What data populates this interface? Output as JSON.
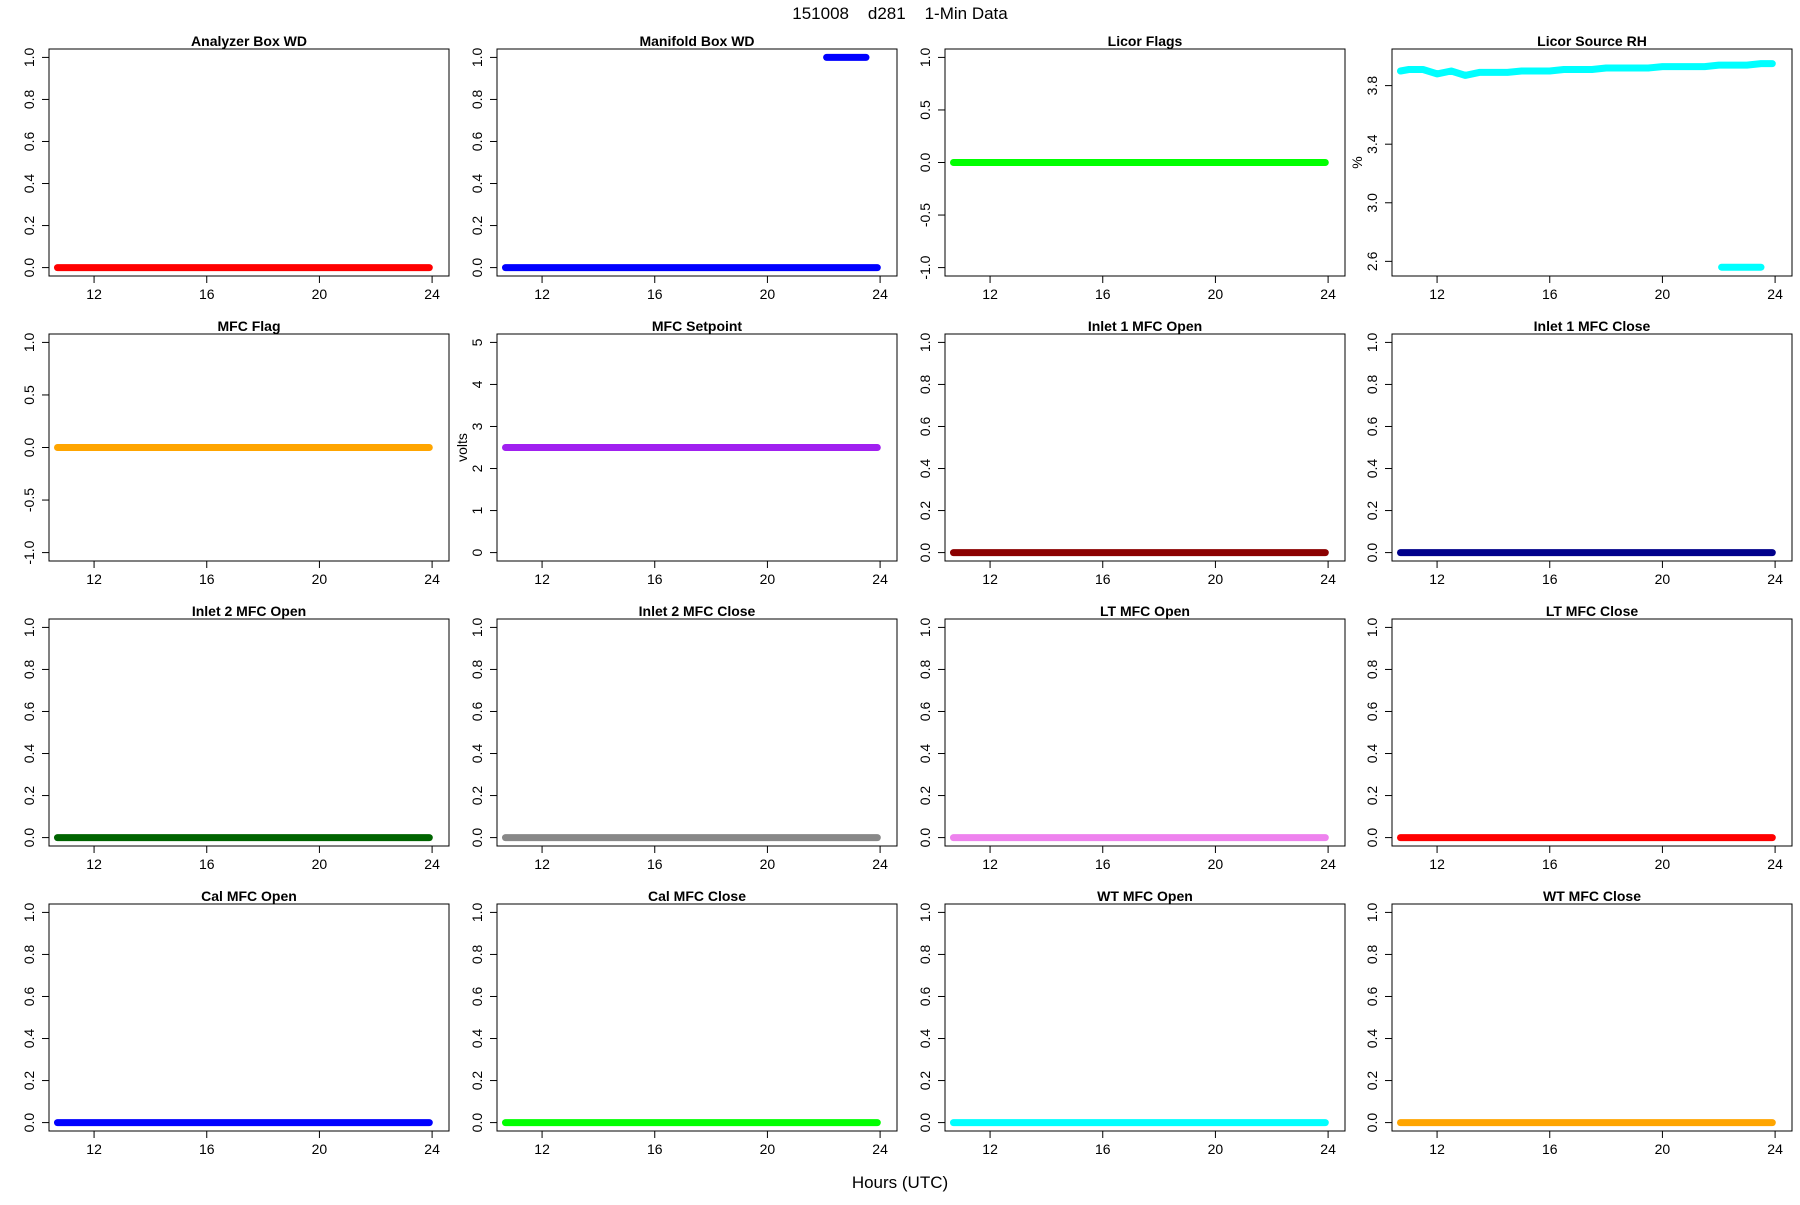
{
  "figure": {
    "title": "151008    d281    1-Min Data",
    "xlabel": "Hours (UTC)"
  },
  "chart_data": [
    {
      "type": "scatter",
      "title": "Analyzer Box WD",
      "ylabel": "",
      "xlim": [
        10.4,
        24.6
      ],
      "ylim": [
        -0.04,
        1.04
      ],
      "xticks": [
        12,
        16,
        20,
        24
      ],
      "yticks": [
        0,
        0.2,
        0.4,
        0.6,
        0.8,
        1
      ],
      "ytick_labels": [
        "0.0",
        "0.2",
        "0.4",
        "0.6",
        "0.8",
        "1.0"
      ],
      "color": "#ff0000",
      "segments": [
        {
          "x": [
            10.7,
            23.9
          ],
          "y": [
            0,
            0
          ]
        }
      ]
    },
    {
      "type": "scatter",
      "title": "Manifold Box WD",
      "ylabel": "",
      "xlim": [
        10.4,
        24.6
      ],
      "ylim": [
        -0.04,
        1.04
      ],
      "xticks": [
        12,
        16,
        20,
        24
      ],
      "yticks": [
        0,
        0.2,
        0.4,
        0.6,
        0.8,
        1
      ],
      "ytick_labels": [
        "0.0",
        "0.2",
        "0.4",
        "0.6",
        "0.8",
        "1.0"
      ],
      "color": "#0000ff",
      "segments": [
        {
          "x": [
            10.7,
            23.9
          ],
          "y": [
            0,
            0
          ]
        },
        {
          "x": [
            22.1,
            23.5
          ],
          "y": [
            1,
            1
          ]
        }
      ]
    },
    {
      "type": "scatter",
      "title": "Licor Flags",
      "ylabel": "",
      "xlim": [
        10.4,
        24.6
      ],
      "ylim": [
        -1.08,
        1.08
      ],
      "xticks": [
        12,
        16,
        20,
        24
      ],
      "yticks": [
        -1,
        -0.5,
        0,
        0.5,
        1
      ],
      "ytick_labels": [
        "-1.0",
        "-0.5",
        "0.0",
        "0.5",
        "1.0"
      ],
      "color": "#00ff00",
      "segments": [
        {
          "x": [
            10.7,
            23.9
          ],
          "y": [
            0,
            0
          ]
        }
      ]
    },
    {
      "type": "scatter",
      "title": "Licor Source RH",
      "ylabel": "%",
      "xlim": [
        10.4,
        24.6
      ],
      "ylim": [
        2.5,
        4.05
      ],
      "xticks": [
        12,
        16,
        20,
        24
      ],
      "yticks": [
        2.6,
        3,
        3.4,
        3.8
      ],
      "ytick_labels": [
        "2.6",
        "3.0",
        "3.4",
        "3.8"
      ],
      "color": "#00ffff",
      "segments": [
        {
          "x": [
            10.7,
            11,
            11.5,
            12,
            12.5,
            13,
            13.5,
            14,
            14.5,
            15,
            15.5,
            16,
            16.5,
            17,
            17.5,
            18,
            18.5,
            19,
            19.5,
            20,
            20.5,
            21,
            21.5,
            22,
            22.5,
            23,
            23.5,
            23.9
          ],
          "y": [
            3.9,
            3.91,
            3.91,
            3.88,
            3.9,
            3.87,
            3.89,
            3.89,
            3.89,
            3.9,
            3.9,
            3.9,
            3.91,
            3.91,
            3.91,
            3.92,
            3.92,
            3.92,
            3.92,
            3.93,
            3.93,
            3.93,
            3.93,
            3.94,
            3.94,
            3.94,
            3.95,
            3.95
          ]
        },
        {
          "x": [
            22.1,
            23.5
          ],
          "y": [
            2.56,
            2.56
          ]
        }
      ]
    },
    {
      "type": "scatter",
      "title": "MFC Flag",
      "ylabel": "",
      "xlim": [
        10.4,
        24.6
      ],
      "ylim": [
        -1.08,
        1.08
      ],
      "xticks": [
        12,
        16,
        20,
        24
      ],
      "yticks": [
        -1,
        -0.5,
        0,
        0.5,
        1
      ],
      "ytick_labels": [
        "-1.0",
        "-0.5",
        "0.0",
        "0.5",
        "1.0"
      ],
      "color": "#ffa500",
      "segments": [
        {
          "x": [
            10.7,
            23.9
          ],
          "y": [
            0,
            0
          ]
        }
      ]
    },
    {
      "type": "scatter",
      "title": "MFC Setpoint",
      "ylabel": "volts",
      "xlim": [
        10.4,
        24.6
      ],
      "ylim": [
        -0.2,
        5.2
      ],
      "xticks": [
        12,
        16,
        20,
        24
      ],
      "yticks": [
        0,
        1,
        2,
        3,
        4,
        5
      ],
      "ytick_labels": [
        "0",
        "1",
        "2",
        "3",
        "4",
        "5"
      ],
      "color": "#a020f0",
      "segments": [
        {
          "x": [
            10.7,
            23.9
          ],
          "y": [
            2.5,
            2.5
          ]
        }
      ]
    },
    {
      "type": "scatter",
      "title": "Inlet 1 MFC Open",
      "ylabel": "",
      "xlim": [
        10.4,
        24.6
      ],
      "ylim": [
        -0.04,
        1.04
      ],
      "xticks": [
        12,
        16,
        20,
        24
      ],
      "yticks": [
        0,
        0.2,
        0.4,
        0.6,
        0.8,
        1
      ],
      "ytick_labels": [
        "0.0",
        "0.2",
        "0.4",
        "0.6",
        "0.8",
        "1.0"
      ],
      "color": "#8b0000",
      "segments": [
        {
          "x": [
            10.7,
            23.9
          ],
          "y": [
            0,
            0
          ]
        }
      ]
    },
    {
      "type": "scatter",
      "title": "Inlet 1 MFC Close",
      "ylabel": "",
      "xlim": [
        10.4,
        24.6
      ],
      "ylim": [
        -0.04,
        1.04
      ],
      "xticks": [
        12,
        16,
        20,
        24
      ],
      "yticks": [
        0,
        0.2,
        0.4,
        0.6,
        0.8,
        1
      ],
      "ytick_labels": [
        "0.0",
        "0.2",
        "0.4",
        "0.6",
        "0.8",
        "1.0"
      ],
      "color": "#00008b",
      "segments": [
        {
          "x": [
            10.7,
            23.9
          ],
          "y": [
            0,
            0
          ]
        }
      ]
    },
    {
      "type": "scatter",
      "title": "Inlet 2 MFC Open",
      "ylabel": "",
      "xlim": [
        10.4,
        24.6
      ],
      "ylim": [
        -0.04,
        1.04
      ],
      "xticks": [
        12,
        16,
        20,
        24
      ],
      "yticks": [
        0,
        0.2,
        0.4,
        0.6,
        0.8,
        1
      ],
      "ytick_labels": [
        "0.0",
        "0.2",
        "0.4",
        "0.6",
        "0.8",
        "1.0"
      ],
      "color": "#006400",
      "segments": [
        {
          "x": [
            10.7,
            23.9
          ],
          "y": [
            0,
            0
          ]
        }
      ]
    },
    {
      "type": "scatter",
      "title": "Inlet 2 MFC Close",
      "ylabel": "",
      "xlim": [
        10.4,
        24.6
      ],
      "ylim": [
        -0.04,
        1.04
      ],
      "xticks": [
        12,
        16,
        20,
        24
      ],
      "yticks": [
        0,
        0.2,
        0.4,
        0.6,
        0.8,
        1
      ],
      "ytick_labels": [
        "0.0",
        "0.2",
        "0.4",
        "0.6",
        "0.8",
        "1.0"
      ],
      "color": "#888888",
      "segments": [
        {
          "x": [
            10.7,
            23.9
          ],
          "y": [
            0,
            0
          ]
        }
      ]
    },
    {
      "type": "scatter",
      "title": "LT MFC Open",
      "ylabel": "",
      "xlim": [
        10.4,
        24.6
      ],
      "ylim": [
        -0.04,
        1.04
      ],
      "xticks": [
        12,
        16,
        20,
        24
      ],
      "yticks": [
        0,
        0.2,
        0.4,
        0.6,
        0.8,
        1
      ],
      "ytick_labels": [
        "0.0",
        "0.2",
        "0.4",
        "0.6",
        "0.8",
        "1.0"
      ],
      "color": "#ee82ee",
      "segments": [
        {
          "x": [
            10.7,
            23.9
          ],
          "y": [
            0,
            0
          ]
        }
      ]
    },
    {
      "type": "scatter",
      "title": "LT MFC Close",
      "ylabel": "",
      "xlim": [
        10.4,
        24.6
      ],
      "ylim": [
        -0.04,
        1.04
      ],
      "xticks": [
        12,
        16,
        20,
        24
      ],
      "yticks": [
        0,
        0.2,
        0.4,
        0.6,
        0.8,
        1
      ],
      "ytick_labels": [
        "0.0",
        "0.2",
        "0.4",
        "0.6",
        "0.8",
        "1.0"
      ],
      "color": "#ff0000",
      "segments": [
        {
          "x": [
            10.7,
            23.9
          ],
          "y": [
            0,
            0
          ]
        }
      ]
    },
    {
      "type": "scatter",
      "title": "Cal MFC Open",
      "ylabel": "",
      "xlim": [
        10.4,
        24.6
      ],
      "ylim": [
        -0.04,
        1.04
      ],
      "xticks": [
        12,
        16,
        20,
        24
      ],
      "yticks": [
        0,
        0.2,
        0.4,
        0.6,
        0.8,
        1
      ],
      "ytick_labels": [
        "0.0",
        "0.2",
        "0.4",
        "0.6",
        "0.8",
        "1.0"
      ],
      "color": "#0000ff",
      "segments": [
        {
          "x": [
            10.7,
            23.9
          ],
          "y": [
            0,
            0
          ]
        }
      ]
    },
    {
      "type": "scatter",
      "title": "Cal MFC Close",
      "ylabel": "",
      "xlim": [
        10.4,
        24.6
      ],
      "ylim": [
        -0.04,
        1.04
      ],
      "xticks": [
        12,
        16,
        20,
        24
      ],
      "yticks": [
        0,
        0.2,
        0.4,
        0.6,
        0.8,
        1
      ],
      "ytick_labels": [
        "0.0",
        "0.2",
        "0.4",
        "0.6",
        "0.8",
        "1.0"
      ],
      "color": "#00ff00",
      "segments": [
        {
          "x": [
            10.7,
            23.9
          ],
          "y": [
            0,
            0
          ]
        }
      ]
    },
    {
      "type": "scatter",
      "title": "WT MFC Open",
      "ylabel": "",
      "xlim": [
        10.4,
        24.6
      ],
      "ylim": [
        -0.04,
        1.04
      ],
      "xticks": [
        12,
        16,
        20,
        24
      ],
      "yticks": [
        0,
        0.2,
        0.4,
        0.6,
        0.8,
        1
      ],
      "ytick_labels": [
        "0.0",
        "0.2",
        "0.4",
        "0.6",
        "0.8",
        "1.0"
      ],
      "color": "#00ffff",
      "segments": [
        {
          "x": [
            10.7,
            23.9
          ],
          "y": [
            0,
            0
          ]
        }
      ]
    },
    {
      "type": "scatter",
      "title": "WT MFC Close",
      "ylabel": "",
      "xlim": [
        10.4,
        24.6
      ],
      "ylim": [
        -0.04,
        1.04
      ],
      "xticks": [
        12,
        16,
        20,
        24
      ],
      "yticks": [
        0,
        0.2,
        0.4,
        0.6,
        0.8,
        1
      ],
      "ytick_labels": [
        "0.0",
        "0.2",
        "0.4",
        "0.6",
        "0.8",
        "1.0"
      ],
      "color": "#ffa500",
      "segments": [
        {
          "x": [
            10.7,
            23.9
          ],
          "y": [
            0,
            0
          ]
        }
      ]
    }
  ]
}
